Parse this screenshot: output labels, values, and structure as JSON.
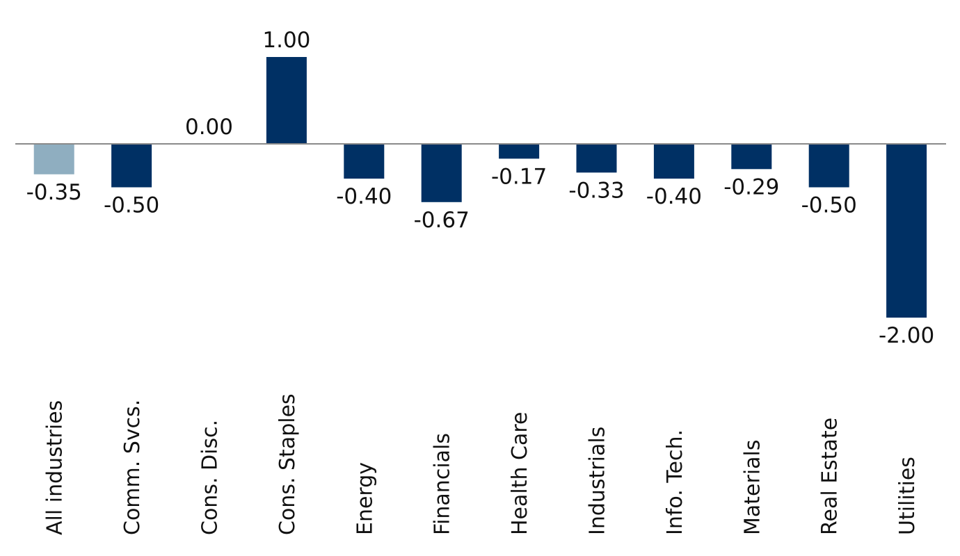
{
  "chart_data": {
    "type": "bar",
    "title": "",
    "xlabel": "",
    "ylabel": "",
    "categories": [
      "All industries",
      "Comm. Svcs.",
      "Cons. Disc.",
      "Cons. Staples",
      "Energy",
      "Financials",
      "Health Care",
      "Industrials",
      "Info. Tech.",
      "Materials",
      "Real Estate",
      "Utilities"
    ],
    "values": [
      -0.35,
      -0.5,
      0.0,
      1.0,
      -0.4,
      -0.67,
      -0.17,
      -0.33,
      -0.4,
      -0.29,
      -0.5,
      -2.0
    ],
    "data_labels": [
      "-0.35",
      "-0.50",
      "0.00",
      "1.00",
      "-0.40",
      "-0.67",
      "-0.17",
      "-0.33",
      "-0.40",
      "-0.29",
      "-0.50",
      "-2.00"
    ],
    "ylim": [
      -2.0,
      1.0
    ],
    "grid": false,
    "legend": "none",
    "colors": {
      "highlight": "#8faec0",
      "default": "#003064",
      "baseline": "#8a8a8a"
    },
    "highlight_categories": [
      "All industries"
    ]
  }
}
